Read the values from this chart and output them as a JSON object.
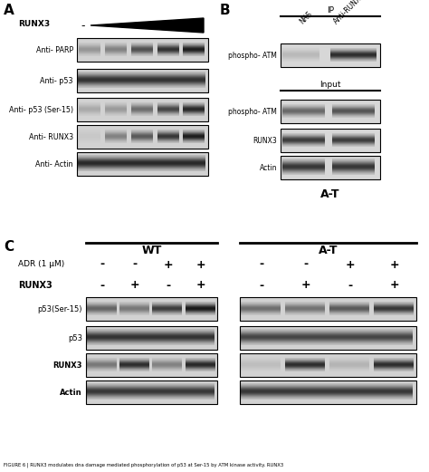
{
  "panel_A_label": "A",
  "panel_B_label": "B",
  "panel_C_label": "C",
  "panel_A_runx3_label": "RUNX3",
  "panel_A_dash": "-",
  "panel_A_antibodies": [
    "Anti- PARP",
    "Anti- p53",
    "Anti- p53 (Ser-15)",
    "Anti- RUNX3",
    "Anti- Actin"
  ],
  "panel_B_ip_label": "IP",
  "panel_B_input_label": "Input",
  "panel_B_cols": [
    "NRS",
    "Anti-RUNX3"
  ],
  "panel_B_ip_rows": [
    "phospho- ATM"
  ],
  "panel_B_input_rows": [
    "phospho- ATM",
    "RUNX3",
    "Actin"
  ],
  "panel_C_wt_label": "WT",
  "panel_C_at_label": "A-T",
  "panel_C_row1": "ADR (1 μM)",
  "panel_C_row2": "RUNX3",
  "panel_C_signs_adr": [
    "-",
    "-",
    "+",
    "+"
  ],
  "panel_C_signs_runx3": [
    "-",
    "+",
    "-",
    "+"
  ],
  "panel_C_antibodies": [
    "p53(Ser-15)",
    "p53",
    "RUNX3",
    "Actin"
  ],
  "fig_caption": "FIGURE 6 | RUNX3 modulates dna damage mediated phosphorylation of p53 at Ser-15 by ATM kinase activity. RUNX3",
  "bg_color": "#ffffff"
}
